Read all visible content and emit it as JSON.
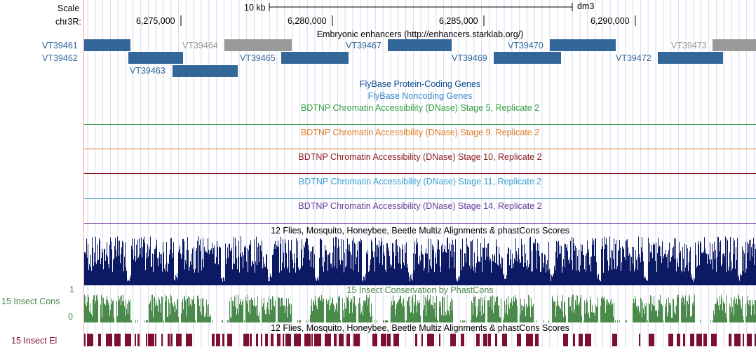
{
  "header": {
    "scale_label": "Scale",
    "scale_bar_label": "10 kb",
    "assembly": "dm3",
    "chrom_label": "chr3R:",
    "positions": [
      "6,275,000",
      "6,280,000",
      "6,285,000",
      "6,290,000"
    ]
  },
  "enhancers": {
    "title": "Embryonic enhancers (http://enhancers.starklab.org/)",
    "items": [
      {
        "name": "VT39461",
        "color": "#336699"
      },
      {
        "name": "VT39462",
        "color": "#336699"
      },
      {
        "name": "VT39463",
        "color": "#336699"
      },
      {
        "name": "VT39464",
        "color": "#999999"
      },
      {
        "name": "VT39465",
        "color": "#336699"
      },
      {
        "name": "VT39467",
        "color": "#336699"
      },
      {
        "name": "VT39469",
        "color": "#336699"
      },
      {
        "name": "VT39470",
        "color": "#336699"
      },
      {
        "name": "VT39472",
        "color": "#336699"
      },
      {
        "name": "VT39473",
        "color": "#999999"
      }
    ]
  },
  "tracks": {
    "protein_coding": {
      "title": "FlyBase Protein-Coding Genes",
      "color": "#0b4e91"
    },
    "noncoding": {
      "title": "FlyBase Noncoding Genes",
      "color": "#3c86c6"
    },
    "dnase": [
      {
        "title": "BDTNP Chromatin Accessibility (DNase) Stage 5, Replicate 2",
        "color": "#2f9e3c"
      },
      {
        "title": "BDTNP Chromatin Accessibility (DNase) Stage 9, Replicate 2",
        "color": "#e07b25"
      },
      {
        "title": "BDTNP Chromatin Accessibility (DNase) Stage 10, Replicate 2",
        "color": "#8b1a1a"
      },
      {
        "title": "BDTNP Chromatin Accessibility (DNase) Stage 11, Replicate 2",
        "color": "#3aa0d0"
      },
      {
        "title": "BDTNP Chromatin Accessibility (DNase) Stage 14, Replicate 2",
        "color": "#6a3c9c"
      }
    ],
    "multiz": {
      "title": "12 Flies, Mosquito, Honeybee, Beetle Multiz Alignments & phastCons Scores",
      "color": "#0c1a66"
    },
    "cons15": {
      "title": "15 Insect Conservation by PhastCons",
      "side_label": "15 Insect Cons",
      "y_max": "1",
      "y_min": "0",
      "color": "#4a8a4a"
    },
    "multiz2": {
      "title": "12 Flies, Mosquito, Honeybee, Beetle Multiz Alignments & phastCons Scores"
    },
    "elements": {
      "side_label": "15 Insect El",
      "color": "#7d1030"
    }
  }
}
